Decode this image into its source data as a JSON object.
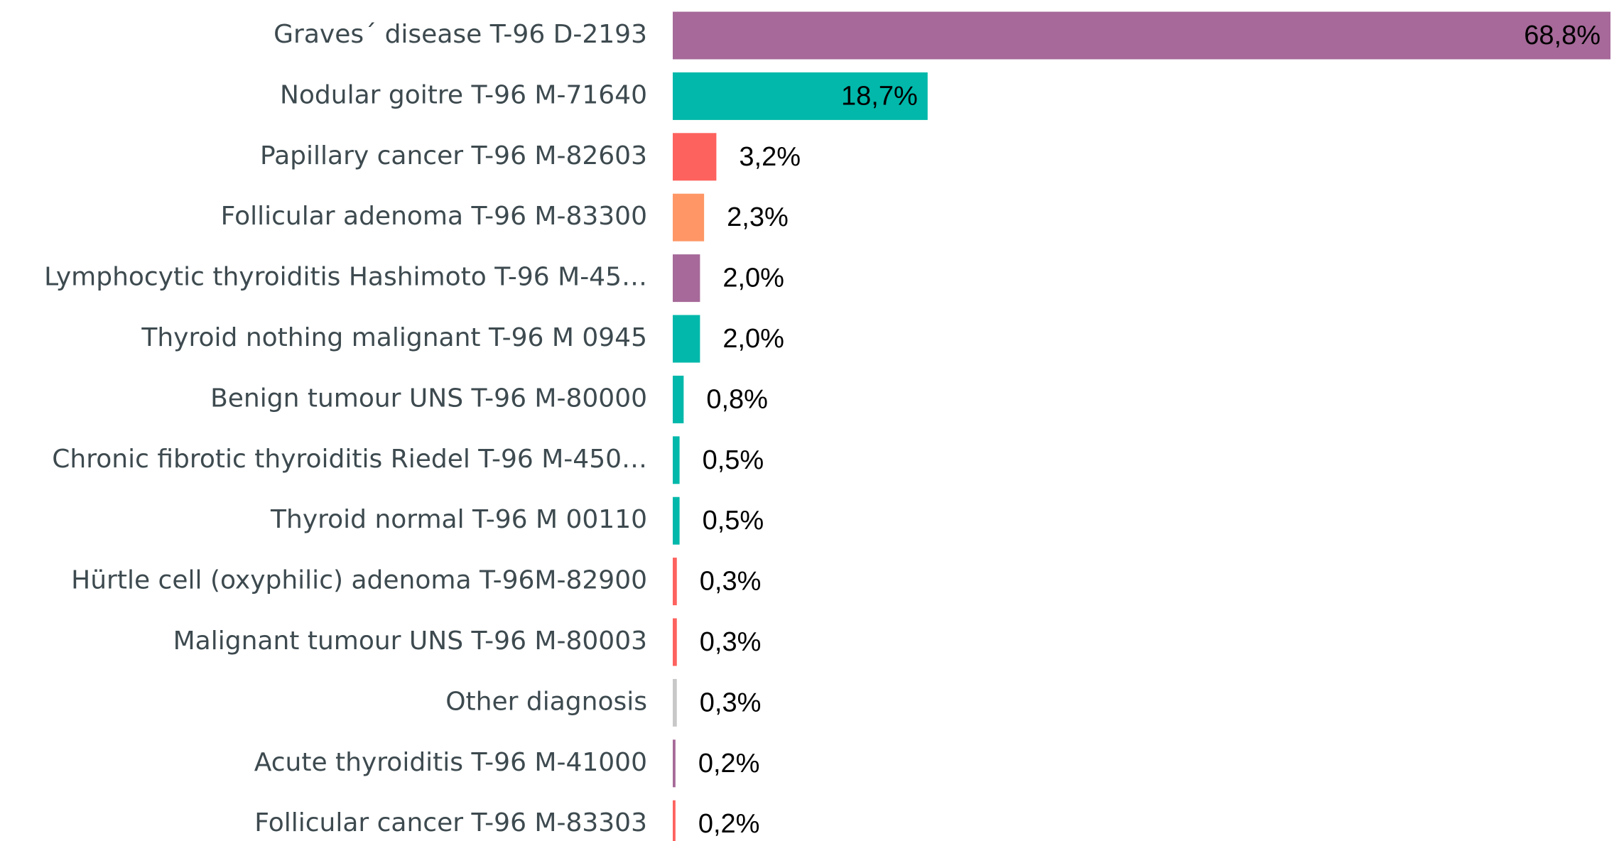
{
  "chart_data": {
    "type": "bar",
    "orientation": "horizontal",
    "categories": [
      "Graves´ disease T-96 D-2193",
      "Nodular goitre T-96 M-71640",
      "Papillary cancer T-96 M-82603",
      "Follicular adenoma T-96 M-83300",
      "Lymphocytic thyroiditis Hashimoto T-96 M-45…",
      "Thyroid nothing malignant T-96 M 0945",
      "Benign tumour UNS T-96 M-80000",
      "Chronic fibrotic thyroiditis Riedel T-96 M-450…",
      "Thyroid normal T-96 M 00110",
      "Hürtle cell (oxyphilic) adenoma T-96M-82900",
      "Malignant tumour UNS T-96 M-80003",
      "Other diagnosis",
      "Acute thyroiditis T-96 M-41000",
      "Follicular cancer T-96 M-83303"
    ],
    "values": [
      68.8,
      18.7,
      3.2,
      2.3,
      2.0,
      2.0,
      0.8,
      0.5,
      0.5,
      0.3,
      0.3,
      0.3,
      0.2,
      0.2
    ],
    "value_labels": [
      "68,8%",
      "18,7%",
      "3,2%",
      "2,3%",
      "2,0%",
      "2,0%",
      "0,8%",
      "0,5%",
      "0,5%",
      "0,3%",
      "0,3%",
      "0,3%",
      "0,2%",
      "0,2%"
    ],
    "colors": [
      "#a66999",
      "#01b8aa",
      "#fd625e",
      "#fe9666",
      "#a66999",
      "#01b8aa",
      "#01b8aa",
      "#01b8aa",
      "#01b8aa",
      "#fd625e",
      "#fd625e",
      "#c8c8c8",
      "#a66999",
      "#fd625e"
    ]
  }
}
